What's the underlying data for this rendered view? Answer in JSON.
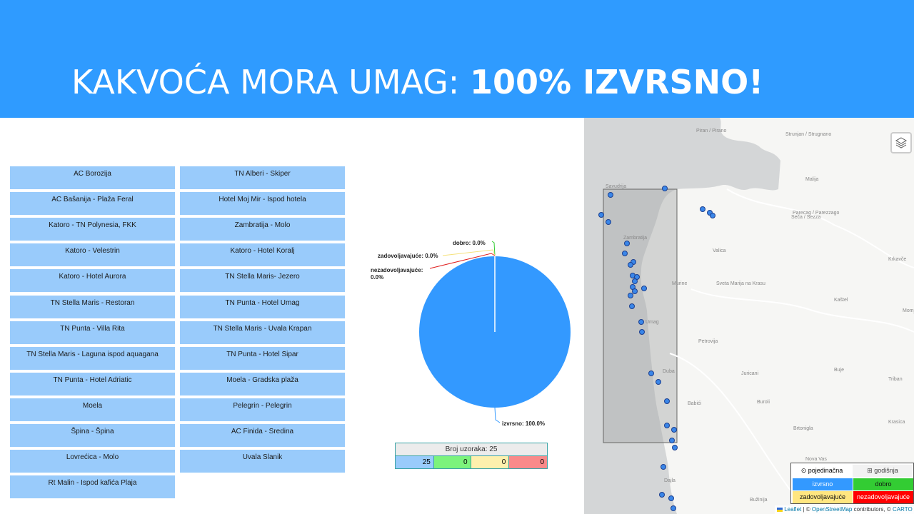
{
  "title": {
    "light": "KAKVOĆA MORA UMAG: ",
    "bold": "100% IZVRSNO!"
  },
  "beaches_left": [
    "AC Borozija",
    "AC Bašanija - Plaža Feral",
    "Katoro - TN Polynesia, FKK",
    "Katoro - Velestrin",
    "Katoro - Hotel Aurora",
    "TN Stella Maris - Restoran",
    "TN Punta - Villa Rita",
    "TN Stella Maris - Laguna ispod aquagana",
    "TN Punta - Hotel Adriatic",
    "Moela",
    "Špina - Špina",
    "Lovrećica - Molo",
    "Rt Malin - Ispod kafića Plaja"
  ],
  "beaches_right": [
    "TN Alberi - Skiper",
    "Hotel Moj Mir - Ispod hotela",
    "Zambratija - Molo",
    "Katoro - Hotel Koralj",
    "TN Stella Maris- Jezero",
    "TN Punta - Hotel Umag",
    "TN Stella Maris - Uvala Krapan",
    "TN Punta - Hotel Sipar",
    "Moela - Gradska plaža",
    "Pelegrin - Pelegrin",
    "AC Finida - Sredina",
    "Uvala Slanik"
  ],
  "chart_data": {
    "type": "pie",
    "categories": [
      "izvrsno",
      "dobro",
      "zadovoljavajuće",
      "nezadovoljavajuće"
    ],
    "values": [
      100.0,
      0.0,
      0.0,
      0.0
    ],
    "colors": [
      "#3399ff",
      "#33cc33",
      "#f5e17a",
      "#e02020"
    ],
    "labels": {
      "izvrsno": "izvrsno: 100.0%",
      "dobro": "dobro: 0.0%",
      "zadovoljavajuce": "zadovoljavajuće: 0.0%",
      "nezadovoljavajuce_1": "nezadovoljavajuće:",
      "nezadovoljavajuce_2": "0.0%"
    }
  },
  "samples": {
    "header": "Broj uzoraka: 25",
    "counts": [
      "25",
      "0",
      "0",
      "0"
    ]
  },
  "map": {
    "place_labels": [
      "Piran / Pirano",
      "Strunjan / Strugnano",
      "Savudrija",
      "Zambratija",
      "Valica",
      "Murine",
      "Sveta Marija na Krasu",
      "Umag",
      "Petrovija",
      "Juricani",
      "Buje",
      "Dajla",
      "Babići",
      "Buroli",
      "Brtonigla",
      "Nova Vas",
      "Bužinija",
      "Malija",
      "Seča / Sezza",
      "Parecag / Parezzago",
      "Krkavče",
      "Kaštel",
      "Triban",
      "Krasica",
      "Duba",
      "Momjan"
    ],
    "legend": {
      "single": "pojedinačna",
      "annual": "godišnja",
      "excellent": "izvrsno",
      "good": "dobro",
      "satisfactory": "zadovoljavajuće",
      "unsatisfactory": "nezadovoljavajuće"
    },
    "attribution": {
      "leaflet": "Leaflet",
      "sep": " | © ",
      "osm": "OpenStreetMap",
      "contrib": " contributors, © ",
      "carto": "CARTO"
    },
    "legend_colors": {
      "excellent": "#3399ff",
      "good": "#33cc33",
      "satisfactory": "#ffe680",
      "unsatisfactory": "#ff0000"
    }
  }
}
